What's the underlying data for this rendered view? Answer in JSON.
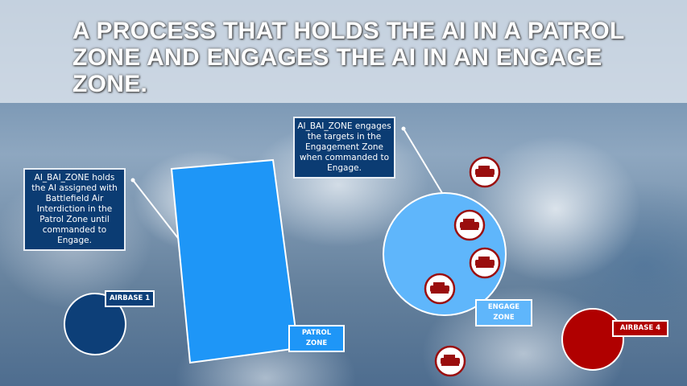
{
  "title": "A PROCESS THAT HOLDS THE AI IN A PATROL ZONE AND ENGAGES THE AI IN AN ENGAGE ZONE.",
  "notes": {
    "patrol": "AI_BAI_ZONE holds the AI assigned with Battlefield Air Interdiction in the Patrol Zone until commanded to Engage.",
    "engage": "AI_BAI_ZONE engages the targets in the Engagement Zone when commanded to Engage."
  },
  "labels": {
    "airbase1": "AIRBASE 1",
    "patrol_zone_1": "PATROL",
    "patrol_zone_2": "ZONE",
    "engage_zone_1": "ENGAGE",
    "engage_zone_2": "ZONE",
    "airbase4": "AIRBASE 4"
  },
  "colors": {
    "blue_coalition": "#0d3f78",
    "red_coalition": "#b00000",
    "patrol_zone": "#1e96f7",
    "engage_zone": "#5fb6fb"
  },
  "icons": [
    "tank-icon",
    "tank-icon",
    "tank-icon",
    "tank-icon",
    "tank-icon"
  ]
}
